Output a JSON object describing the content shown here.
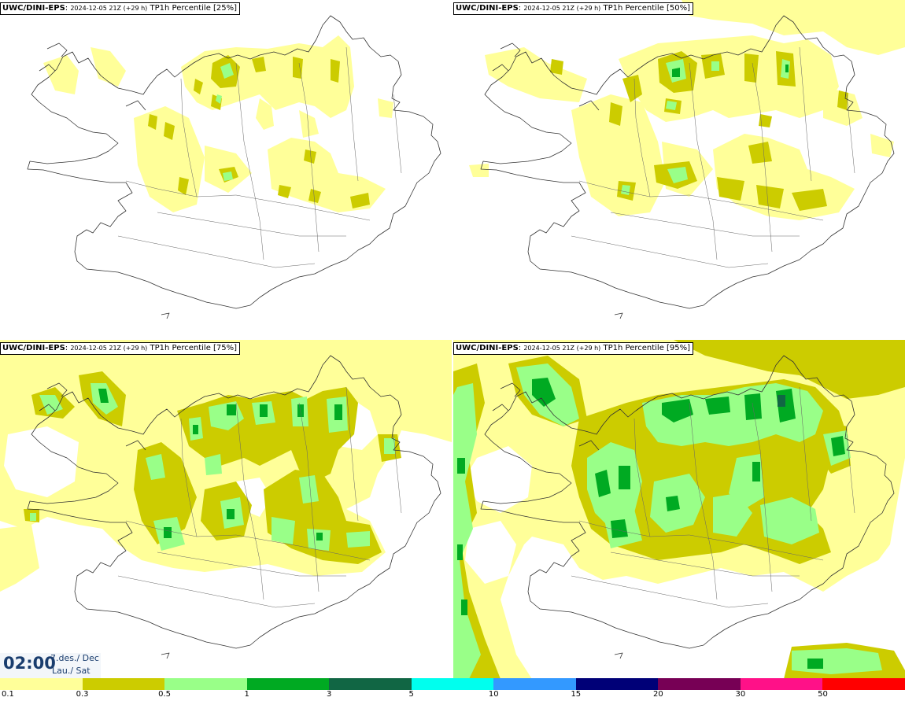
{
  "panels": [
    {
      "model": "UWC/DINI-EPS",
      "run": "2024-12-05 21Z (+29 h)",
      "label": "TP1h Percentile [25%]"
    },
    {
      "model": "UWC/DINI-EPS",
      "run": "2024-12-05 21Z (+29 h)",
      "label": "TP1h Percentile [50%]"
    },
    {
      "model": "UWC/DINI-EPS",
      "run": "2024-12-05 21Z (+29 h)",
      "label": "TP1h Percentile [75%]"
    },
    {
      "model": "UWC/DINI-EPS",
      "run": "2024-12-05 21Z (+29 h)",
      "label": "TP1h Percentile [95%]"
    }
  ],
  "valid_time": {
    "time": "02:00",
    "date_line1": "7.des./ Dec",
    "date_line2": "Lau./ Sat"
  },
  "legend": {
    "ticks": [
      "0.1",
      "0.3",
      "0.5",
      "1",
      "3",
      "5",
      "10",
      "15",
      "20",
      "30",
      "50"
    ],
    "colors": [
      "#ffff99",
      "#cccc00",
      "#99ff88",
      "#00aa22",
      "#116644",
      "#00ffee",
      "#3399ff",
      "#000077",
      "#770055",
      "#ff1188",
      "#ff0000"
    ]
  },
  "colors": {
    "light": "#ffff99",
    "olive": "#cccc00",
    "lightgreen": "#99ff88",
    "green": "#00aa22"
  }
}
